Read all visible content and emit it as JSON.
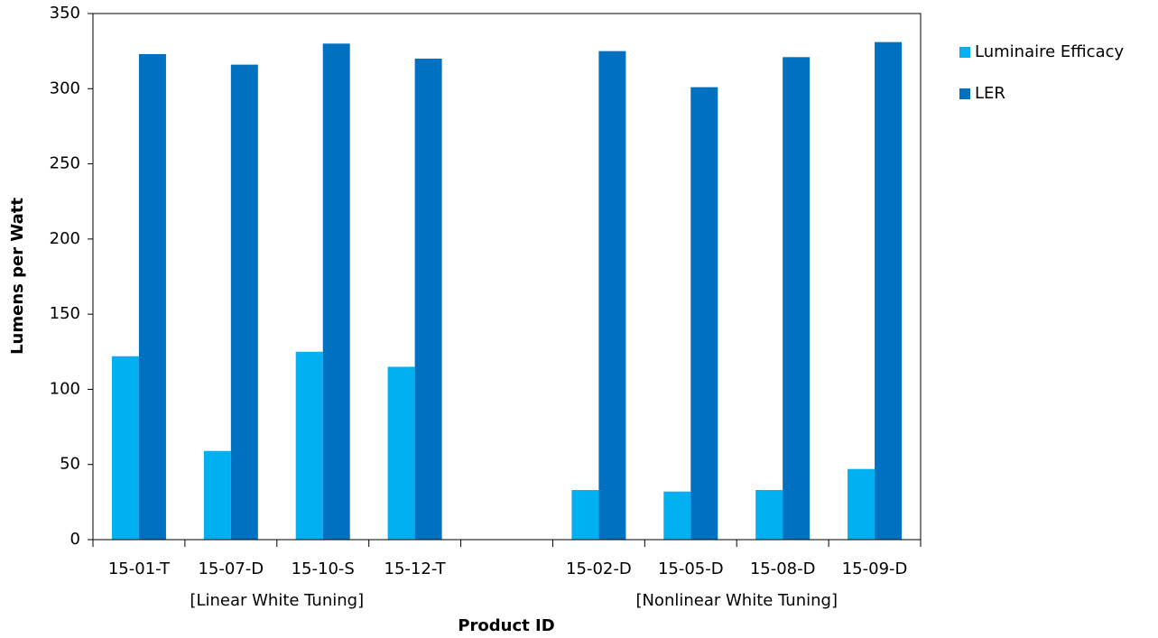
{
  "chart_data": {
    "type": "bar",
    "y_label": "Lumens per Watt",
    "x_label": "Product ID",
    "categories": [
      "15-01-T",
      "15-07-D",
      "15-10-S",
      "15-12-T",
      null,
      "15-02-D",
      "15-05-D",
      "15-08-D",
      "15-09-D"
    ],
    "group_labels": [
      "[Linear White Tuning]",
      "[Nonlinear White Tuning]"
    ],
    "series": [
      {
        "name": "Luminaire Efficacy",
        "color": "#00b0f0",
        "values": [
          122,
          59,
          125,
          115,
          null,
          33,
          32,
          33,
          47
        ]
      },
      {
        "name": "LER",
        "color": "#0070c0",
        "values": [
          323,
          316,
          330,
          320,
          null,
          325,
          301,
          321,
          331
        ]
      }
    ],
    "ylim": [
      0,
      350
    ],
    "yticks": [
      0,
      50,
      100,
      150,
      200,
      250,
      300,
      350
    ],
    "legend": "right"
  }
}
